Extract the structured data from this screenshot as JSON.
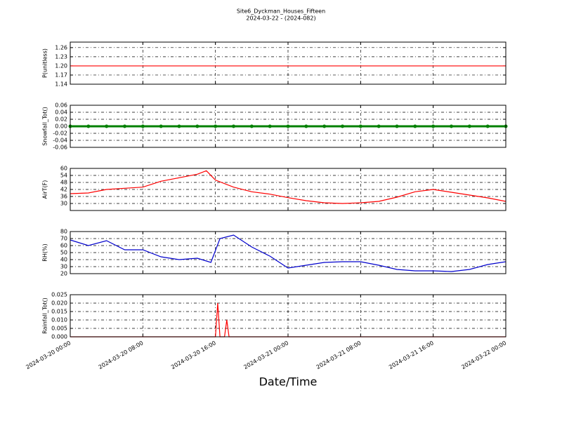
{
  "figure": {
    "title": "Site6_Dyckman_Houses_Fifteen",
    "subtitle": "2024-03-22 - (2024-082)",
    "xlabel": "Date/Time"
  },
  "chart_data": [
    {
      "type": "line",
      "ylabel": "P(unitless)",
      "color": "#ff0000",
      "grid": true,
      "x": [
        "2024-03-20 00:00",
        "2024-03-22 00:00"
      ],
      "values": [
        1.2,
        1.2
      ],
      "xlim": [
        "2024-03-20 00:00",
        "2024-03-22 00:00"
      ],
      "xticks": [
        "2024-03-20 00:00",
        "2024-03-20 08:00",
        "2024-03-20 16:00",
        "2024-03-21 00:00",
        "2024-03-21 08:00",
        "2024-03-21 16:00",
        "2024-03-22 00:00"
      ],
      "ylim": [
        1.14,
        1.278
      ],
      "yticks": [
        1.14,
        1.17,
        {
          "value": 1.2,
          "label": "1.20"
        },
        1.23,
        1.26
      ]
    },
    {
      "type": "line",
      "ylabel": "Snowfall_Tot()",
      "color": "#008000",
      "marker": "o",
      "grid": true,
      "x": [
        "2024-03-20 00:00",
        "2024-03-20 02:00",
        "2024-03-20 04:00",
        "2024-03-20 06:00",
        "2024-03-20 08:00",
        "2024-03-20 10:00",
        "2024-03-20 12:00",
        "2024-03-20 14:00",
        "2024-03-20 16:00",
        "2024-03-20 18:00",
        "2024-03-20 20:00",
        "2024-03-20 22:00",
        "2024-03-21 00:00",
        "2024-03-21 02:00",
        "2024-03-21 04:00",
        "2024-03-21 06:00",
        "2024-03-21 08:00",
        "2024-03-21 10:00",
        "2024-03-21 12:00",
        "2024-03-21 14:00",
        "2024-03-21 16:00",
        "2024-03-21 18:00",
        "2024-03-21 20:00",
        "2024-03-21 22:00",
        "2024-03-22 00:00"
      ],
      "values": [
        0,
        0,
        0,
        0,
        0,
        0,
        0,
        0,
        0,
        0,
        0,
        0,
        0,
        0,
        0,
        0,
        0,
        0,
        0,
        0,
        0,
        0,
        0,
        0,
        0
      ],
      "xlim": [
        "2024-03-20 00:00",
        "2024-03-22 00:00"
      ],
      "xticks": [
        "2024-03-20 00:00",
        "2024-03-20 08:00",
        "2024-03-20 16:00",
        "2024-03-21 00:00",
        "2024-03-21 08:00",
        "2024-03-21 16:00",
        "2024-03-22 00:00"
      ],
      "ylim": [
        -0.06,
        0.06
      ],
      "yticks": [
        -0.06,
        -0.04,
        -0.02,
        {
          "value": 0,
          "label": "0.00"
        },
        0.02,
        0.04,
        0.06
      ]
    },
    {
      "type": "line",
      "ylabel": "AirT(F)",
      "color": "#ff0000",
      "grid": true,
      "x": [
        "2024-03-20 00:00",
        "2024-03-20 02:00",
        "2024-03-20 04:00",
        "2024-03-20 06:00",
        "2024-03-20 08:00",
        "2024-03-20 10:00",
        "2024-03-20 12:00",
        "2024-03-20 14:00",
        "2024-03-20 15:00",
        "2024-03-20 16:00",
        "2024-03-20 18:00",
        "2024-03-20 20:00",
        "2024-03-20 22:00",
        "2024-03-21 00:00",
        "2024-03-21 02:00",
        "2024-03-21 04:00",
        "2024-03-21 06:00",
        "2024-03-21 08:00",
        "2024-03-21 10:00",
        "2024-03-21 12:00",
        "2024-03-21 14:00",
        "2024-03-21 16:00",
        "2024-03-21 18:00",
        "2024-03-21 20:00",
        "2024-03-21 22:00",
        "2024-03-22 00:00"
      ],
      "values": [
        38.4,
        39,
        42,
        43,
        44,
        49,
        52,
        55,
        58,
        50,
        44,
        40,
        38,
        35,
        32.4,
        30.6,
        30,
        30.6,
        31.8,
        35.4,
        40,
        42,
        39.6,
        37.2,
        34.8,
        31.8
      ],
      "xlim": [
        "2024-03-20 00:00",
        "2024-03-22 00:00"
      ],
      "xticks": [
        "2024-03-20 00:00",
        "2024-03-20 08:00",
        "2024-03-20 16:00",
        "2024-03-21 00:00",
        "2024-03-21 08:00",
        "2024-03-21 16:00",
        "2024-03-22 00:00"
      ],
      "ylim": [
        24,
        60
      ],
      "yticks": [
        30,
        36,
        42,
        48,
        54,
        60
      ]
    },
    {
      "type": "line",
      "ylabel": "RH(%)",
      "color": "#0000cc",
      "grid": true,
      "x": [
        "2024-03-20 00:00",
        "2024-03-20 02:00",
        "2024-03-20 04:00",
        "2024-03-20 06:00",
        "2024-03-20 08:00",
        "2024-03-20 10:00",
        "2024-03-20 12:00",
        "2024-03-20 14:00",
        "2024-03-20 15:30",
        "2024-03-20 16:30",
        "2024-03-20 18:00",
        "2024-03-20 20:00",
        "2024-03-20 22:00",
        "2024-03-21 00:00",
        "2024-03-21 02:00",
        "2024-03-21 04:00",
        "2024-03-21 06:00",
        "2024-03-21 08:00",
        "2024-03-21 10:00",
        "2024-03-21 12:00",
        "2024-03-21 14:00",
        "2024-03-21 16:00",
        "2024-03-21 18:00",
        "2024-03-21 20:00",
        "2024-03-21 22:00",
        "2024-03-22 00:00"
      ],
      "values": [
        68,
        60,
        67,
        54,
        54,
        44,
        40,
        42,
        36,
        70,
        75,
        58,
        45,
        28,
        32,
        36,
        37,
        37,
        32,
        26,
        24,
        24,
        23,
        26,
        33,
        37
      ],
      "xlim": [
        "2024-03-20 00:00",
        "2024-03-22 00:00"
      ],
      "xticks": [
        "2024-03-20 00:00",
        "2024-03-20 08:00",
        "2024-03-20 16:00",
        "2024-03-21 00:00",
        "2024-03-21 08:00",
        "2024-03-21 16:00",
        "2024-03-22 00:00"
      ],
      "ylim": [
        20,
        80
      ],
      "yticks": [
        20,
        30,
        40,
        50,
        60,
        70,
        80
      ]
    },
    {
      "type": "line",
      "ylabel": "Rainfall_Tot()",
      "color": "#ff0000",
      "grid": true,
      "x": [
        "2024-03-20 00:00",
        "2024-03-20 16:00",
        "2024-03-20 16:15",
        "2024-03-20 16:30",
        "2024-03-20 17:00",
        "2024-03-20 17:15",
        "2024-03-20 17:30",
        "2024-03-22 00:00"
      ],
      "values": [
        0,
        0,
        0.02,
        0,
        0,
        0.01,
        0,
        0
      ],
      "xlim": [
        "2024-03-20 00:00",
        "2024-03-22 00:00"
      ],
      "xticks": [
        "2024-03-20 00:00",
        "2024-03-20 08:00",
        "2024-03-20 16:00",
        "2024-03-21 00:00",
        "2024-03-21 08:00",
        "2024-03-21 16:00",
        "2024-03-22 00:00"
      ],
      "ylim": [
        0,
        0.025
      ],
      "yticks": [
        {
          "value": 0,
          "label": "0.000"
        },
        {
          "value": 0.005,
          "label": "0.005"
        },
        {
          "value": 0.01,
          "label": "0.010"
        },
        {
          "value": 0.015,
          "label": "0.015"
        },
        {
          "value": 0.02,
          "label": "0.020"
        },
        {
          "value": 0.025,
          "label": "0.025"
        }
      ]
    }
  ]
}
